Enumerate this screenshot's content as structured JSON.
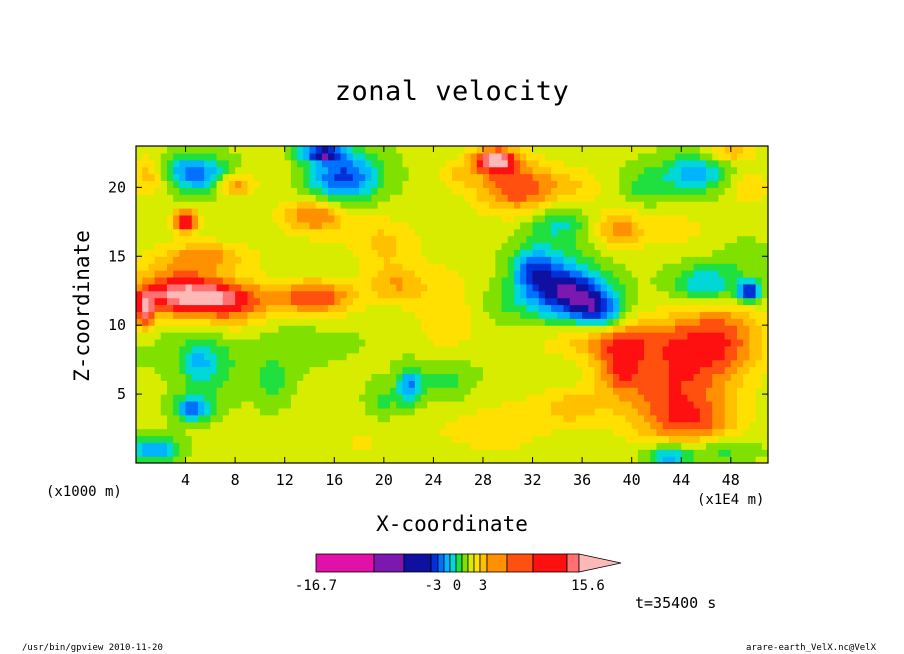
{
  "chart_data": {
    "type": "heatmap",
    "title": "zonal velocity",
    "xlabel": "X-coordinate",
    "ylabel": "Z-coordinate",
    "x_unit_left": "(x1000 m)",
    "x_unit_right": "(x1E4 m)",
    "xlim": [
      0,
      51
    ],
    "ylim": [
      0,
      23
    ],
    "x_ticks": [
      "4",
      "8",
      "12",
      "16",
      "20",
      "24",
      "28",
      "32",
      "36",
      "40",
      "44",
      "48"
    ],
    "x_tick_values": [
      4,
      8,
      12,
      16,
      20,
      24,
      28,
      32,
      36,
      40,
      44,
      48
    ],
    "y_ticks": [
      "5",
      "10",
      "15",
      "20"
    ],
    "y_tick_values": [
      5,
      10,
      15,
      20
    ],
    "colorbar": {
      "labels": [
        "-16.7",
        "-3",
        "0",
        "3",
        "15.6"
      ],
      "min": -16.7,
      "max": 15.6,
      "colors": [
        "#e010a8",
        "#7a18b0",
        "#1010a0",
        "#0030d8",
        "#0070ff",
        "#00b4ff",
        "#00d8d8",
        "#20e040",
        "#80e000",
        "#d8ec00",
        "#ffe000",
        "#ffc000",
        "#ff9000",
        "#ff5010",
        "#ff1010",
        "#ff7070",
        "#ffb8b8"
      ]
    },
    "time_label": "t=35400 s",
    "footer_left": "/usr/bin/gpview  2010-11-20",
    "footer_right": "arare-earth_VelX.nc@VelX",
    "blobs": [
      {
        "x": 5.5,
        "z": 15,
        "rx": 4,
        "ry": 1.2,
        "v": 6
      },
      {
        "x": 4,
        "z": 17.6,
        "rx": 1.1,
        "ry": 0.9,
        "v": 12
      },
      {
        "x": 6,
        "z": 12,
        "rx": 5,
        "ry": 1.5,
        "v": 9
      },
      {
        "x": 3,
        "z": 12.5,
        "rx": 4,
        "ry": 2,
        "v": 8
      },
      {
        "x": 14.5,
        "z": 12,
        "rx": 3.5,
        "ry": 1.4,
        "v": 9
      },
      {
        "x": 8,
        "z": 11,
        "rx": 3,
        "ry": 2,
        "v": 4
      },
      {
        "x": 21,
        "z": 13,
        "rx": 2.5,
        "ry": 1.5,
        "v": 5
      },
      {
        "x": 25,
        "z": 11,
        "rx": 3,
        "ry": 4,
        "v": 3
      },
      {
        "x": 20,
        "z": 16,
        "rx": 3,
        "ry": 2,
        "v": 4
      },
      {
        "x": 8,
        "z": 9,
        "rx": 10,
        "ry": 2.5,
        "v": -1.5
      },
      {
        "x": 5,
        "z": 7.5,
        "rx": 1.5,
        "ry": 1.5,
        "v": -4
      },
      {
        "x": 4.5,
        "z": 4,
        "rx": 1.5,
        "ry": 1,
        "v": -9
      },
      {
        "x": 6,
        "z": 6.5,
        "rx": 2.5,
        "ry": 2.5,
        "v": -3
      },
      {
        "x": 11,
        "z": 6,
        "rx": 1.5,
        "ry": 2,
        "v": -3
      },
      {
        "x": 18,
        "z": 1.5,
        "rx": 8,
        "ry": 2,
        "v": 1.5
      },
      {
        "x": 27,
        "z": 4,
        "rx": 6,
        "ry": 3,
        "v": 1.5
      },
      {
        "x": 30,
        "z": 2,
        "rx": 4,
        "ry": 2,
        "v": 1.5
      },
      {
        "x": 35,
        "z": 4,
        "rx": 3,
        "ry": 1.5,
        "v": 4
      },
      {
        "x": 43,
        "z": 6,
        "rx": 5,
        "ry": 4,
        "v": 8
      },
      {
        "x": 47,
        "z": 9,
        "rx": 4,
        "ry": 3,
        "v": 8
      },
      {
        "x": 39,
        "z": 7,
        "rx": 2,
        "ry": 2,
        "v": 6
      },
      {
        "x": 38,
        "z": 9,
        "rx": 6,
        "ry": 1.5,
        "v": 4
      },
      {
        "x": 45,
        "z": 3,
        "rx": 4,
        "ry": 2,
        "v": 6
      },
      {
        "x": 43,
        "z": 0.5,
        "rx": 2,
        "ry": 1,
        "v": -8
      },
      {
        "x": 47,
        "z": 1,
        "rx": 3,
        "ry": 1,
        "v": -4
      },
      {
        "x": 34,
        "z": 13,
        "rx": 3,
        "ry": 2.5,
        "v": -8
      },
      {
        "x": 36,
        "z": 12,
        "rx": 3,
        "ry": 2,
        "v": -9
      },
      {
        "x": 32,
        "z": 14,
        "rx": 2,
        "ry": 2,
        "v": -7
      },
      {
        "x": 37.5,
        "z": 11,
        "rx": 2,
        "ry": 1.5,
        "v": -7
      },
      {
        "x": 38.5,
        "z": 9,
        "rx": 4,
        "ry": 1.5,
        "v": 2
      },
      {
        "x": 30,
        "z": 11.5,
        "rx": 3,
        "ry": 1.5,
        "v": -2
      },
      {
        "x": 46,
        "z": 13,
        "rx": 3,
        "ry": 1.5,
        "v": -7
      },
      {
        "x": 49.5,
        "z": 12.5,
        "rx": 1,
        "ry": 0.8,
        "v": -13
      },
      {
        "x": 49,
        "z": 15,
        "rx": 2,
        "ry": 1.3,
        "v": -2
      },
      {
        "x": 43.5,
        "z": 17,
        "rx": 4,
        "ry": 2,
        "v": 2
      },
      {
        "x": 5,
        "z": 21,
        "rx": 2.5,
        "ry": 1.4,
        "v": -9
      },
      {
        "x": 8,
        "z": 20.2,
        "rx": 1.6,
        "ry": 0.8,
        "v": 7
      },
      {
        "x": 12,
        "z": 21,
        "rx": 2,
        "ry": 1.5,
        "v": 1
      },
      {
        "x": 17,
        "z": 21,
        "rx": 3,
        "ry": 1.8,
        "v": -8
      },
      {
        "x": 15,
        "z": 22.5,
        "rx": 2,
        "ry": 0.7,
        "v": -12
      },
      {
        "x": 14.5,
        "z": 18,
        "rx": 3,
        "ry": 1.5,
        "v": 8
      },
      {
        "x": 29,
        "z": 22,
        "rx": 2,
        "ry": 1,
        "v": 13
      },
      {
        "x": 31,
        "z": 20,
        "rx": 4,
        "ry": 2,
        "v": 9
      },
      {
        "x": 26,
        "z": 21,
        "rx": 1.5,
        "ry": 1,
        "v": 3
      },
      {
        "x": 34,
        "z": 17.5,
        "rx": 2.5,
        "ry": 1.5,
        "v": -5
      },
      {
        "x": 39,
        "z": 17,
        "rx": 2,
        "ry": 1.5,
        "v": 6
      },
      {
        "x": 36,
        "z": 20,
        "rx": 2,
        "ry": 1.5,
        "v": 2
      },
      {
        "x": 45,
        "z": 21,
        "rx": 3,
        "ry": 1.5,
        "v": -7
      },
      {
        "x": 49.5,
        "z": 20,
        "rx": 2,
        "ry": 1.5,
        "v": 3
      },
      {
        "x": 48,
        "z": 22.5,
        "rx": 2,
        "ry": 0.7,
        "v": 5
      },
      {
        "x": 1,
        "z": 21,
        "rx": 1.5,
        "ry": 1.5,
        "v": 5
      },
      {
        "x": 3,
        "z": 21.5,
        "rx": 2,
        "ry": 1,
        "v": -2
      },
      {
        "x": 1.5,
        "z": 1,
        "rx": 2,
        "ry": 1,
        "v": -8
      },
      {
        "x": 0.7,
        "z": 11,
        "rx": 0.8,
        "ry": 1.5,
        "v": 10
      },
      {
        "x": 25,
        "z": 6,
        "rx": 3,
        "ry": 2,
        "v": -4
      },
      {
        "x": 22,
        "z": 5.5,
        "rx": 1,
        "ry": 1.5,
        "v": -8
      },
      {
        "x": 20,
        "z": 4.5,
        "rx": 1.5,
        "ry": 1.5,
        "v": -3
      },
      {
        "x": 16,
        "z": 20,
        "rx": 3,
        "ry": 2,
        "v": -4
      },
      {
        "x": 41,
        "z": 20,
        "rx": 2,
        "ry": 1.5,
        "v": -3
      }
    ]
  }
}
